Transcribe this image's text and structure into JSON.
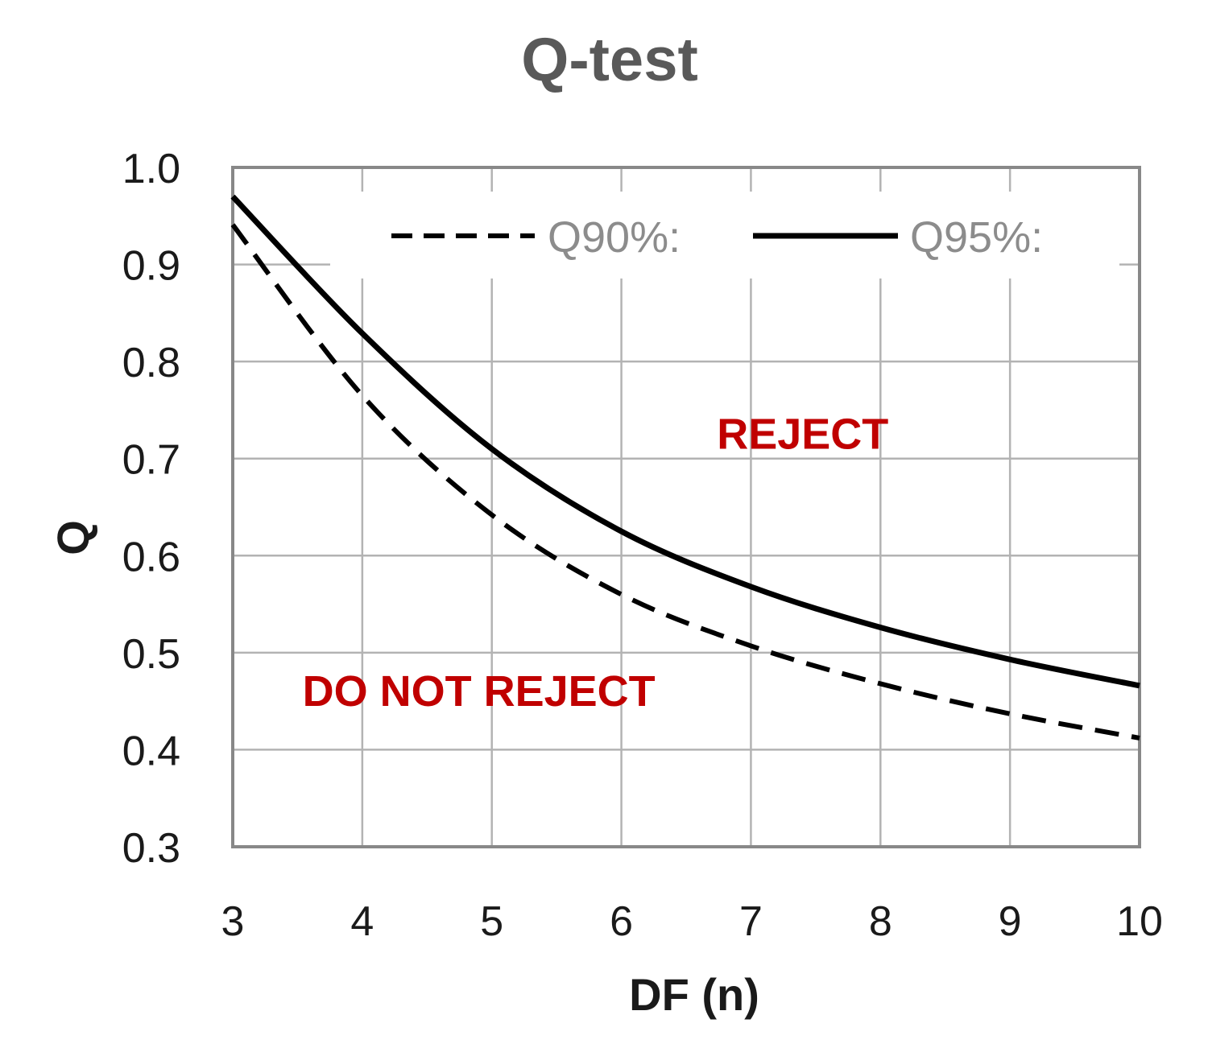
{
  "chart_data": {
    "type": "line",
    "title": "Q-test",
    "xlabel": "DF (n)",
    "ylabel": "Q",
    "xlim": [
      3,
      10
    ],
    "ylim": [
      0.3,
      1.0
    ],
    "x_ticks": [
      "3",
      "4",
      "5",
      "6",
      "7",
      "8",
      "9",
      "10"
    ],
    "y_ticks": [
      "1.0",
      "0.9",
      "0.8",
      "0.7",
      "0.6",
      "0.5",
      "0.4",
      "0.3"
    ],
    "grid": true,
    "legend_position": "top",
    "x": [
      3,
      4,
      5,
      6,
      7,
      8,
      9,
      10
    ],
    "series": [
      {
        "name": "Q90%:",
        "style": "dashed",
        "color": "#000000",
        "values": [
          0.941,
          0.765,
          0.642,
          0.56,
          0.507,
          0.468,
          0.437,
          0.412
        ]
      },
      {
        "name": "Q95%:",
        "style": "solid",
        "color": "#000000",
        "values": [
          0.97,
          0.829,
          0.71,
          0.625,
          0.568,
          0.526,
          0.493,
          0.466
        ]
      }
    ],
    "annotations": [
      {
        "text": "REJECT",
        "x": 7.4,
        "y": 0.71,
        "color": "#c00000"
      },
      {
        "text": "DO NOT REJECT",
        "x": 4.9,
        "y": 0.445,
        "color": "#c00000"
      }
    ]
  }
}
